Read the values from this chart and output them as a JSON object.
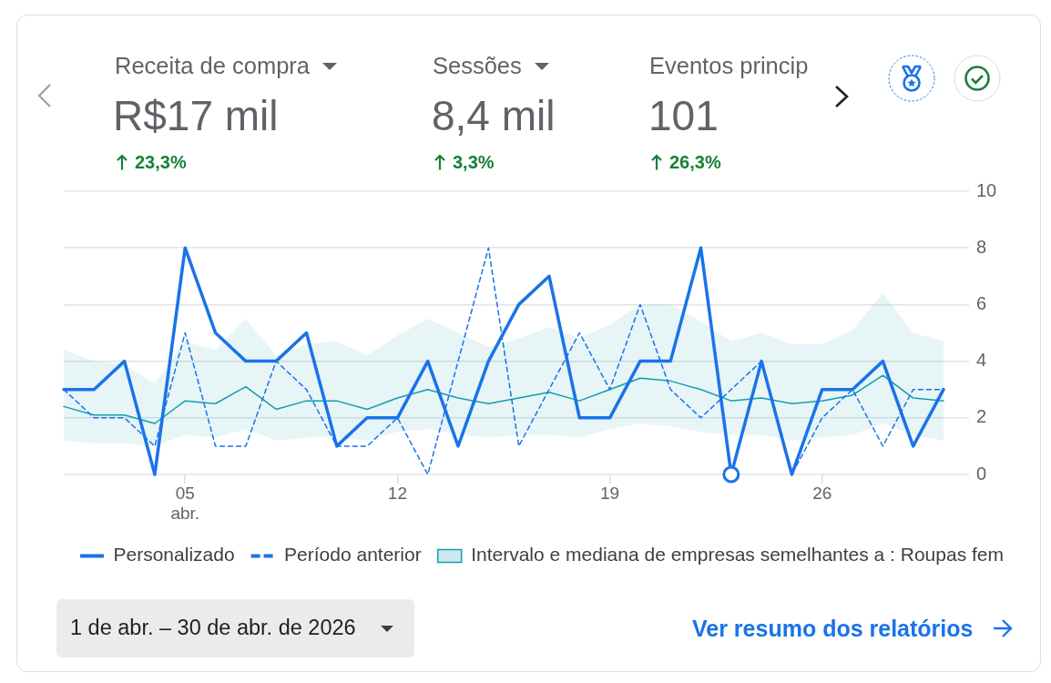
{
  "chart_data": {
    "type": "line",
    "x": [
      "2026-04-01",
      "2026-04-02",
      "2026-04-03",
      "2026-04-04",
      "2026-04-05",
      "2026-04-06",
      "2026-04-07",
      "2026-04-08",
      "2026-04-09",
      "2026-04-10",
      "2026-04-11",
      "2026-04-12",
      "2026-04-13",
      "2026-04-14",
      "2026-04-15",
      "2026-04-16",
      "2026-04-17",
      "2026-04-18",
      "2026-04-19",
      "2026-04-20",
      "2026-04-21",
      "2026-04-22",
      "2026-04-23",
      "2026-04-24",
      "2026-04-25",
      "2026-04-26",
      "2026-04-27",
      "2026-04-28",
      "2026-04-29",
      "2026-04-30"
    ],
    "xlim": [
      "2026-04-01",
      "2026-04-30"
    ],
    "xticks": [
      {
        "value": "2026-04-05",
        "label": "05\nabr."
      },
      {
        "value": "2026-04-12",
        "label": "12"
      },
      {
        "value": "2026-04-19",
        "label": "19"
      },
      {
        "value": "2026-04-26",
        "label": "26"
      }
    ],
    "ylim": [
      0,
      10
    ],
    "yticks": [
      0,
      2,
      4,
      6,
      8,
      10
    ],
    "series": [
      {
        "name": "Personalizado",
        "color": "#1a73e8",
        "values": [
          3,
          3,
          4,
          0,
          8,
          5,
          4,
          4,
          5,
          1,
          2,
          2,
          4,
          1,
          4,
          6,
          7,
          2,
          2,
          4,
          4,
          8,
          0,
          4,
          0,
          3,
          3,
          4,
          1,
          3
        ]
      },
      {
        "name": "Período anterior",
        "color": "#1a73e8",
        "line_style": "dashed",
        "values": [
          3,
          2,
          2,
          1,
          5,
          1,
          1,
          4,
          3,
          1,
          1,
          2,
          0,
          4,
          8,
          1,
          3,
          5,
          3,
          6,
          3,
          2,
          3,
          4,
          0,
          2,
          3,
          1,
          3,
          3
        ]
      },
      {
        "name": "Intervalo e mediana de empresas semelhantes a : Roupas fem",
        "color": "#129eaf",
        "values": [
          2.4,
          2.1,
          2.1,
          1.8,
          2.6,
          2.5,
          3.1,
          2.3,
          2.6,
          2.6,
          2.3,
          2.7,
          3.0,
          2.7,
          2.5,
          2.7,
          2.9,
          2.6,
          3.0,
          3.4,
          3.3,
          3.0,
          2.6,
          2.7,
          2.5,
          2.6,
          2.8,
          3.5,
          2.7,
          2.6
        ],
        "lower": [
          1.2,
          1.1,
          1.1,
          1.0,
          1.4,
          1.3,
          1.6,
          1.2,
          1.3,
          1.3,
          1.2,
          1.5,
          1.6,
          1.4,
          1.3,
          1.4,
          1.4,
          1.3,
          1.6,
          1.8,
          1.7,
          1.5,
          1.4,
          1.4,
          1.2,
          1.3,
          1.4,
          1.8,
          1.4,
          1.2
        ],
        "upper": [
          4.4,
          4.0,
          3.9,
          3.2,
          4.7,
          4.4,
          5.5,
          4.2,
          4.6,
          4.7,
          4.2,
          4.9,
          5.5,
          5.0,
          4.5,
          4.8,
          5.2,
          4.8,
          5.3,
          6.0,
          6.0,
          5.4,
          4.7,
          5.0,
          4.6,
          4.6,
          5.1,
          6.4,
          5.0,
          4.7
        ]
      },
      {
        "type": "scatter",
        "marker": "circle",
        "color": "#1a73e8",
        "x": [
          "2026-04-23"
        ],
        "values": [
          0
        ]
      }
    ],
    "grid": "y",
    "legend": "bottom",
    "marker": "none",
    "line_style": "solid",
    "annotations": [
      "Receita de compra",
      "R$17 mil",
      "23,3%",
      "Sessões",
      "8,4 mil",
      "3,3%",
      "Eventos princip",
      "101",
      "26,3%",
      "1 de abr. – 30 de abr. de 2026",
      "Ver resumo dos relatórios"
    ]
  }
}
